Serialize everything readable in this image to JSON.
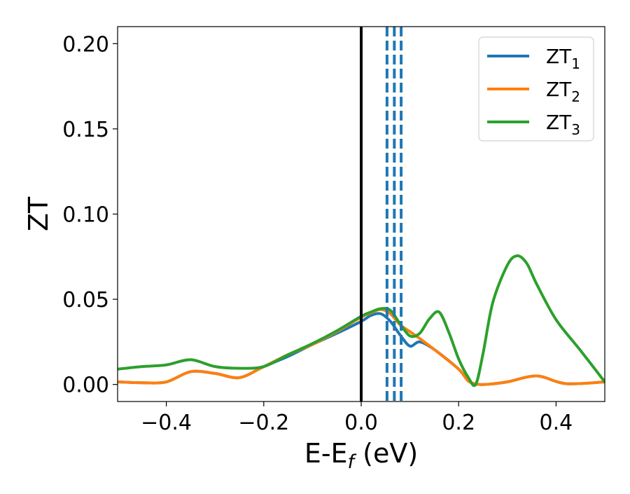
{
  "chart_data": {
    "type": "line",
    "xlabel": "E-E",
    "xlabel_sub": "f",
    "xlabel_unit": " (eV)",
    "ylabel": "ZT",
    "xlim": [
      -0.5,
      0.5
    ],
    "ylim": [
      -0.01,
      0.21
    ],
    "xticks": [
      -0.4,
      -0.2,
      0.0,
      0.2,
      0.4
    ],
    "xtick_labels": [
      "−0.4",
      "−0.2",
      "0.0",
      "0.2",
      "0.4"
    ],
    "yticks": [
      0.0,
      0.05,
      0.1,
      0.15,
      0.2
    ],
    "ytick_labels": [
      "0.00",
      "0.05",
      "0.10",
      "0.15",
      "0.20"
    ],
    "legend_position": "top-right",
    "series": [
      {
        "name": "ZT",
        "name_sub": "1",
        "color": "#1f77b4",
        "x": [
          -0.5,
          -0.45,
          -0.4,
          -0.35,
          -0.3,
          -0.25,
          -0.2,
          -0.15,
          -0.1,
          -0.05,
          0.0,
          0.02,
          0.04,
          0.06,
          0.08,
          0.1,
          0.12,
          0.15,
          0.2,
          0.22,
          0.24,
          0.26,
          0.3,
          0.36,
          0.42,
          0.5
        ],
        "y": [
          0.0015,
          0.001,
          0.0015,
          0.0075,
          0.0065,
          0.004,
          0.0105,
          0.0165,
          0.0235,
          0.03,
          0.037,
          0.0405,
          0.0415,
          0.037,
          0.029,
          0.0225,
          0.025,
          0.0205,
          0.009,
          0.002,
          0.0001,
          0.0001,
          0.0015,
          0.005,
          0.0005,
          0.0015
        ]
      },
      {
        "name": "ZT",
        "name_sub": "2",
        "color": "#ff7f0e",
        "x": [
          -0.5,
          -0.45,
          -0.4,
          -0.35,
          -0.3,
          -0.25,
          -0.2,
          -0.15,
          -0.1,
          -0.05,
          0.0,
          0.02,
          0.04,
          0.06,
          0.08,
          0.1,
          0.12,
          0.15,
          0.2,
          0.22,
          0.24,
          0.26,
          0.3,
          0.36,
          0.42,
          0.5
        ],
        "y": [
          0.0015,
          0.001,
          0.0015,
          0.0075,
          0.0065,
          0.004,
          0.0105,
          0.0175,
          0.0235,
          0.031,
          0.0395,
          0.042,
          0.044,
          0.0415,
          0.035,
          0.031,
          0.027,
          0.0205,
          0.009,
          0.002,
          0.0001,
          0.0001,
          0.0015,
          0.005,
          0.0005,
          0.0015
        ]
      },
      {
        "name": "ZT",
        "name_sub": "3",
        "color": "#2ca02c",
        "x": [
          -0.5,
          -0.45,
          -0.4,
          -0.35,
          -0.3,
          -0.25,
          -0.2,
          -0.15,
          -0.1,
          -0.05,
          0.0,
          0.02,
          0.04,
          0.06,
          0.08,
          0.1,
          0.12,
          0.14,
          0.16,
          0.18,
          0.2,
          0.22,
          0.235,
          0.25,
          0.27,
          0.3,
          0.32,
          0.34,
          0.36,
          0.4,
          0.45,
          0.5
        ],
        "y": [
          0.009,
          0.0105,
          0.0115,
          0.0145,
          0.0105,
          0.0095,
          0.0105,
          0.0175,
          0.024,
          0.0315,
          0.04,
          0.0425,
          0.0445,
          0.0435,
          0.0355,
          0.0285,
          0.03,
          0.0385,
          0.0425,
          0.0305,
          0.015,
          0.004,
          0.0,
          0.018,
          0.048,
          0.07,
          0.0755,
          0.071,
          0.059,
          0.038,
          0.02,
          0.0015
        ]
      }
    ],
    "vlines": [
      {
        "x": 0.0,
        "style": "solid",
        "color": "#000000"
      },
      {
        "x": 0.053,
        "style": "dashed",
        "color": "#1f77b4"
      },
      {
        "x": 0.068,
        "style": "dashed",
        "color": "#1f77b4"
      },
      {
        "x": 0.082,
        "style": "dashed",
        "color": "#1f77b4"
      }
    ]
  }
}
